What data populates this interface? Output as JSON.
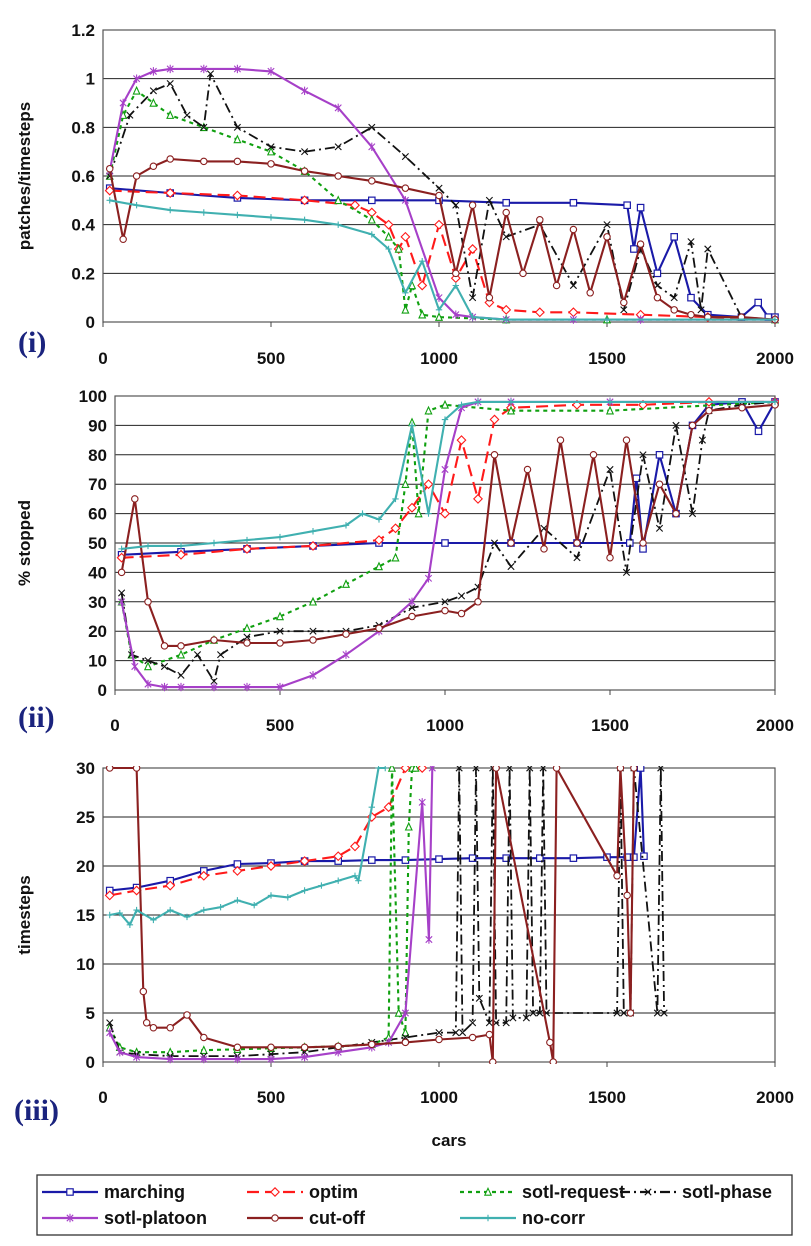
{
  "chart_data": [
    {
      "type": "line",
      "panel": "(i)",
      "ylabel": "patches/timesteps",
      "xlabel": "",
      "xlim": [
        0,
        2000
      ],
      "ylim": [
        0,
        1.2
      ],
      "xticks": [
        "0",
        "500",
        "1000",
        "1500",
        "2000"
      ],
      "yticks": [
        "0",
        "0.2",
        "0.4",
        "0.6",
        "0.8",
        "1",
        "1.2"
      ],
      "series": [
        {
          "name": "marching",
          "x": [
            20,
            200,
            400,
            600,
            800,
            1000,
            1200,
            1400,
            1560,
            1580,
            1600,
            1650,
            1700,
            1750,
            1800,
            1900,
            1950,
            1980,
            2000
          ],
          "y": [
            0.55,
            0.53,
            0.51,
            0.5,
            0.5,
            0.5,
            0.49,
            0.49,
            0.48,
            0.3,
            0.47,
            0.2,
            0.35,
            0.1,
            0.03,
            0.02,
            0.08,
            0.02,
            0.02
          ]
        },
        {
          "name": "optim",
          "x": [
            20,
            200,
            400,
            600,
            750,
            800,
            850,
            880,
            900,
            950,
            1000,
            1050,
            1100,
            1150,
            1200,
            1300,
            1400,
            1600,
            1800,
            2000
          ],
          "y": [
            0.54,
            0.53,
            0.52,
            0.5,
            0.48,
            0.45,
            0.4,
            0.3,
            0.35,
            0.15,
            0.4,
            0.18,
            0.3,
            0.08,
            0.05,
            0.04,
            0.04,
            0.03,
            0.02,
            0.01
          ]
        },
        {
          "name": "sotl-request",
          "x": [
            20,
            60,
            100,
            150,
            200,
            300,
            400,
            500,
            600,
            700,
            800,
            850,
            880,
            900,
            920,
            950,
            1000,
            1200,
            1500,
            2000
          ],
          "y": [
            0.6,
            0.85,
            0.95,
            0.9,
            0.85,
            0.8,
            0.75,
            0.7,
            0.62,
            0.5,
            0.42,
            0.35,
            0.3,
            0.05,
            0.15,
            0.03,
            0.02,
            0.01,
            0.01,
            0.01
          ]
        },
        {
          "name": "sotl-phase",
          "x": [
            20,
            80,
            150,
            200,
            250,
            300,
            320,
            400,
            500,
            600,
            700,
            800,
            900,
            1000,
            1050,
            1100,
            1150,
            1200,
            1300,
            1400,
            1500,
            1550,
            1600,
            1650,
            1700,
            1750,
            1780,
            1800,
            1900,
            2000
          ],
          "y": [
            0.6,
            0.85,
            0.95,
            0.98,
            0.85,
            0.8,
            1.02,
            0.8,
            0.72,
            0.7,
            0.72,
            0.8,
            0.68,
            0.55,
            0.48,
            0.1,
            0.5,
            0.35,
            0.4,
            0.15,
            0.4,
            0.05,
            0.3,
            0.15,
            0.1,
            0.33,
            0.05,
            0.3,
            0.02,
            0.01
          ]
        },
        {
          "name": "sotl-platoon",
          "x": [
            20,
            60,
            100,
            150,
            200,
            300,
            400,
            500,
            600,
            700,
            800,
            900,
            1000,
            1050,
            1100,
            1200,
            1400,
            1600,
            2000
          ],
          "y": [
            0.62,
            0.9,
            1.0,
            1.03,
            1.04,
            1.04,
            1.04,
            1.03,
            0.95,
            0.88,
            0.72,
            0.5,
            0.1,
            0.03,
            0.02,
            0.01,
            0.01,
            0.01,
            0.01
          ]
        },
        {
          "name": "cut-off",
          "x": [
            20,
            60,
            100,
            150,
            200,
            300,
            400,
            500,
            600,
            700,
            800,
            900,
            1000,
            1050,
            1100,
            1150,
            1200,
            1250,
            1300,
            1350,
            1400,
            1450,
            1500,
            1550,
            1600,
            1650,
            1700,
            1750,
            1800,
            1900,
            2000
          ],
          "y": [
            0.63,
            0.34,
            0.6,
            0.64,
            0.67,
            0.66,
            0.66,
            0.65,
            0.62,
            0.6,
            0.58,
            0.55,
            0.52,
            0.2,
            0.48,
            0.1,
            0.45,
            0.2,
            0.42,
            0.15,
            0.38,
            0.12,
            0.35,
            0.08,
            0.32,
            0.1,
            0.05,
            0.03,
            0.02,
            0.02,
            0.01
          ]
        },
        {
          "name": "no-corr",
          "x": [
            20,
            100,
            200,
            300,
            400,
            500,
            600,
            700,
            800,
            850,
            900,
            950,
            1000,
            1050,
            1100,
            1200,
            1500,
            2000
          ],
          "y": [
            0.5,
            0.48,
            0.46,
            0.45,
            0.44,
            0.43,
            0.42,
            0.4,
            0.36,
            0.3,
            0.12,
            0.25,
            0.05,
            0.15,
            0.02,
            0.01,
            0.01,
            0.01
          ]
        }
      ]
    },
    {
      "type": "line",
      "panel": "(ii)",
      "ylabel": "% stopped",
      "xlabel": "",
      "xlim": [
        0,
        2000
      ],
      "ylim": [
        0,
        100
      ],
      "xticks": [
        "0",
        "500",
        "1000",
        "1500",
        "2000"
      ],
      "yticks": [
        "0",
        "10",
        "20",
        "30",
        "40",
        "50",
        "60",
        "70",
        "80",
        "90",
        "100"
      ],
      "series": [
        {
          "name": "marching",
          "x": [
            20,
            200,
            400,
            600,
            800,
            1000,
            1200,
            1400,
            1560,
            1580,
            1600,
            1650,
            1700,
            1750,
            1800,
            1900,
            1950,
            2000
          ],
          "y": [
            46,
            47,
            48,
            49,
            50,
            50,
            50,
            50,
            50,
            72,
            48,
            80,
            60,
            90,
            97,
            98,
            88,
            98
          ]
        },
        {
          "name": "optim",
          "x": [
            20,
            200,
            400,
            600,
            800,
            850,
            900,
            950,
            1000,
            1050,
            1100,
            1150,
            1200,
            1400,
            1600,
            1800,
            2000
          ],
          "y": [
            45,
            46,
            48,
            49,
            51,
            55,
            62,
            70,
            60,
            85,
            65,
            92,
            96,
            97,
            97,
            98,
            98
          ]
        },
        {
          "name": "sotl-request",
          "x": [
            20,
            50,
            100,
            200,
            300,
            400,
            500,
            600,
            700,
            800,
            850,
            880,
            900,
            920,
            950,
            1000,
            1200,
            1500,
            2000
          ],
          "y": [
            30,
            12,
            8,
            12,
            17,
            21,
            25,
            30,
            36,
            42,
            45,
            70,
            91,
            60,
            95,
            97,
            95,
            95,
            98
          ]
        },
        {
          "name": "sotl-phase",
          "x": [
            20,
            50,
            100,
            150,
            200,
            250,
            300,
            320,
            400,
            500,
            600,
            700,
            800,
            900,
            1000,
            1050,
            1100,
            1150,
            1200,
            1300,
            1400,
            1500,
            1550,
            1600,
            1650,
            1700,
            1750,
            1780,
            1800,
            1900,
            2000
          ],
          "y": [
            33,
            12,
            10,
            8,
            5,
            12,
            3,
            12,
            18,
            20,
            20,
            20,
            22,
            28,
            30,
            32,
            35,
            50,
            42,
            55,
            45,
            75,
            40,
            80,
            55,
            90,
            60,
            85,
            95,
            97,
            98
          ]
        },
        {
          "name": "sotl-platoon",
          "x": [
            20,
            60,
            100,
            150,
            200,
            300,
            400,
            500,
            600,
            700,
            800,
            900,
            950,
            1000,
            1050,
            1100,
            1200,
            1500,
            2000
          ],
          "y": [
            30,
            8,
            2,
            1,
            1,
            1,
            1,
            1,
            5,
            12,
            20,
            30,
            38,
            75,
            96,
            98,
            98,
            98,
            98
          ]
        },
        {
          "name": "cut-off",
          "x": [
            20,
            60,
            100,
            150,
            200,
            300,
            400,
            500,
            600,
            700,
            800,
            900,
            1000,
            1050,
            1100,
            1150,
            1200,
            1250,
            1300,
            1350,
            1400,
            1450,
            1500,
            1550,
            1600,
            1650,
            1700,
            1750,
            1800,
            1900,
            2000
          ],
          "y": [
            40,
            65,
            30,
            15,
            15,
            17,
            16,
            16,
            17,
            19,
            21,
            25,
            27,
            26,
            30,
            80,
            50,
            75,
            48,
            85,
            50,
            80,
            45,
            85,
            50,
            70,
            60,
            90,
            95,
            96,
            97
          ]
        },
        {
          "name": "no-corr",
          "x": [
            20,
            100,
            200,
            300,
            400,
            500,
            600,
            700,
            750,
            800,
            850,
            900,
            950,
            1000,
            1050,
            1100,
            1200,
            1500,
            2000
          ],
          "y": [
            48,
            49,
            49,
            50,
            51,
            52,
            54,
            56,
            60,
            58,
            65,
            90,
            60,
            92,
            97,
            98,
            98,
            98,
            98
          ]
        }
      ]
    },
    {
      "type": "line",
      "panel": "(iii)",
      "ylabel": "timesteps",
      "xlabel": "cars",
      "xlim": [
        0,
        2000
      ],
      "ylim": [
        0,
        30
      ],
      "xticks": [
        "0",
        "500",
        "1000",
        "1500",
        "2000"
      ],
      "yticks": [
        "0",
        "5",
        "10",
        "15",
        "20",
        "25",
        "30"
      ],
      "series": [
        {
          "name": "marching",
          "x": [
            20,
            100,
            200,
            300,
            400,
            500,
            600,
            700,
            800,
            900,
            1000,
            1100,
            1200,
            1300,
            1400,
            1500,
            1560,
            1580,
            1600,
            1610
          ],
          "y": [
            17.5,
            17.8,
            18.5,
            19.5,
            20.2,
            20.3,
            20.5,
            20.5,
            20.6,
            20.6,
            20.7,
            20.8,
            20.8,
            20.8,
            20.8,
            20.9,
            20.9,
            20.9,
            30,
            21
          ]
        },
        {
          "name": "optim",
          "x": [
            20,
            100,
            200,
            300,
            400,
            500,
            600,
            700,
            750,
            800,
            850,
            900,
            950
          ],
          "y": [
            17,
            17.5,
            18,
            19,
            19.5,
            20,
            20.5,
            21,
            22,
            25,
            26,
            30,
            30
          ]
        },
        {
          "name": "sotl-request",
          "x": [
            20,
            50,
            100,
            200,
            300,
            400,
            500,
            600,
            700,
            800,
            850,
            860,
            880,
            900,
            910,
            920,
            930
          ],
          "y": [
            3.5,
            1.5,
            1,
            1,
            1.2,
            1.3,
            1.4,
            1.5,
            1.6,
            1.8,
            2.5,
            30,
            5,
            3,
            24,
            30,
            30
          ]
        },
        {
          "name": "sotl-phase",
          "x": [
            20,
            50,
            100,
            200,
            300,
            400,
            500,
            600,
            700,
            800,
            900,
            1000,
            1050,
            1060,
            1070,
            1100,
            1110,
            1120,
            1150,
            1160,
            1170,
            1200,
            1210,
            1220,
            1260,
            1270,
            1280,
            1300,
            1310,
            1320,
            1530,
            1540,
            1550,
            1570,
            1580,
            1650,
            1660,
            1670
          ],
          "y": [
            4,
            1,
            0.8,
            0.6,
            0.6,
            0.6,
            0.8,
            1,
            1.5,
            2,
            2.5,
            3,
            3,
            30,
            3,
            4,
            30,
            6.5,
            4,
            30,
            4,
            4,
            30,
            4.5,
            4.5,
            30,
            5,
            5,
            30,
            5,
            5,
            30,
            5,
            5,
            30,
            5,
            30,
            5
          ]
        },
        {
          "name": "sotl-platoon",
          "x": [
            20,
            50,
            100,
            200,
            300,
            400,
            500,
            600,
            700,
            800,
            850,
            900,
            950,
            970,
            980
          ],
          "y": [
            3,
            1,
            0.5,
            0.3,
            0.3,
            0.3,
            0.3,
            0.5,
            1,
            1.5,
            2,
            5,
            26.5,
            12.5,
            30
          ]
        },
        {
          "name": "cut-off",
          "x": [
            20,
            100,
            120,
            130,
            150,
            200,
            250,
            300,
            400,
            500,
            600,
            700,
            800,
            900,
            1000,
            1100,
            1150,
            1160,
            1170,
            1330,
            1340,
            1350,
            1530,
            1540,
            1560,
            1570,
            1580
          ],
          "y": [
            30,
            30,
            7.2,
            4,
            3.5,
            3.5,
            4.8,
            2.5,
            1.5,
            1.5,
            1.5,
            1.6,
            1.8,
            2,
            2.3,
            2.5,
            2.8,
            0,
            30,
            2,
            0,
            30,
            19,
            30,
            17,
            5,
            30
          ]
        },
        {
          "name": "no-corr",
          "x": [
            20,
            50,
            80,
            100,
            150,
            200,
            250,
            300,
            350,
            400,
            450,
            500,
            550,
            600,
            650,
            700,
            750,
            760,
            800,
            820,
            840
          ],
          "y": [
            15,
            15.2,
            14,
            15.5,
            14.5,
            15.5,
            14.8,
            15.5,
            15.8,
            16.5,
            16,
            17,
            16.8,
            17.5,
            18,
            18.5,
            19,
            18.5,
            26,
            30,
            30
          ]
        }
      ]
    }
  ],
  "panel_labels": [
    "(i)",
    "(ii)",
    "(iii)"
  ],
  "legend": {
    "items": [
      "marching",
      "optim",
      "sotl-request",
      "sotl-phase",
      "sotl-platoon",
      "cut-off",
      "no-corr"
    ]
  },
  "colors": {
    "marching": "#1a1aa8",
    "optim": "#ff1a1a",
    "sotl-request": "#10a010",
    "sotl-phase": "#111111",
    "sotl-platoon": "#a640c8",
    "cut-off": "#8b2020",
    "no-corr": "#40b0b0"
  }
}
